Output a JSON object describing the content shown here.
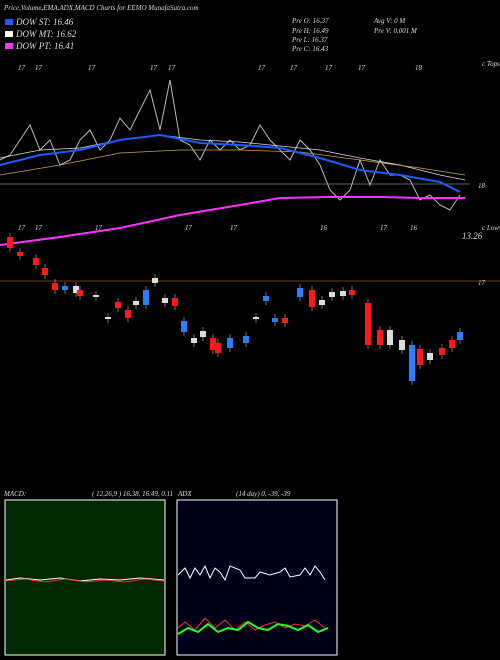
{
  "header": {
    "title": "Price,Volume,EMA,ADX,MACD Charts for EEMO MunafaSutra.com"
  },
  "legend": [
    {
      "label": "DOW ST: 16.46",
      "color": "#1a5cff"
    },
    {
      "label": "DOW MT: 16.62",
      "color": "#ffffff"
    },
    {
      "label": "DOW PT: 16.41",
      "color": "#ff33ff"
    }
  ],
  "stats": {
    "left": [
      "Pre  O: 16.37",
      "Pre  H: 16.49",
      "Pre  L: 16.37",
      "Pre  C: 16.43"
    ],
    "right": [
      "Avg V: 0  M",
      "Pre  V: 0.001 M"
    ]
  },
  "axis_labels": {
    "tops": "c Tops",
    "lows": "c Lows",
    "level_high": "18",
    "level_mid": "13.26",
    "level_low": "17"
  },
  "x_labels_top": [
    "17",
    "17",
    "17",
    "17",
    "17",
    "17",
    "17",
    "17",
    "17",
    "18"
  ],
  "x_labels_mid": [
    "17",
    "17",
    "17",
    "17",
    "17",
    "16",
    "17",
    "16"
  ],
  "macd": {
    "label": "MACD:",
    "params": "( 12,26,9 ) 16.38, 16.49, 0.11"
  },
  "adx": {
    "label": "ADX",
    "params": "(14  day) 0, -39, -39"
  }
}
